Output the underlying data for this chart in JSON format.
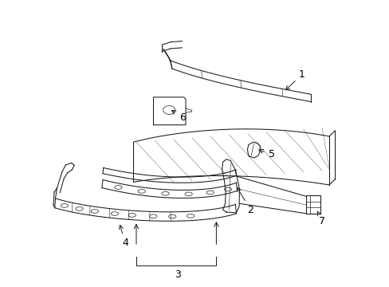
{
  "background_color": "#ffffff",
  "line_color": "#1a1a1a",
  "label_color": "#000000",
  "figsize": [
    4.89,
    3.6
  ],
  "dpi": 100,
  "lw": 0.75,
  "label_fontsize": 9
}
